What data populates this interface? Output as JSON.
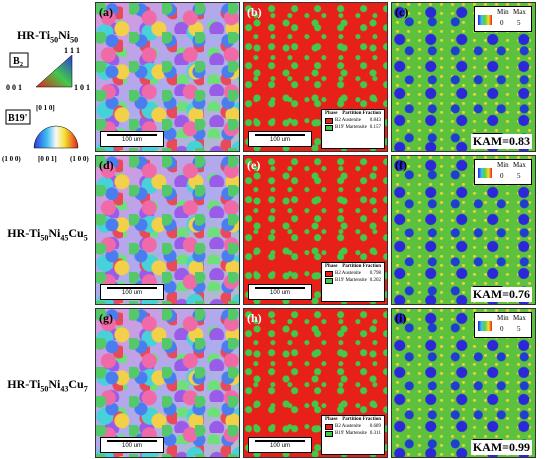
{
  "figure": {
    "rows": [
      {
        "sample_prefix": "HR-Ti",
        "sample_sub1": "50",
        "sample_mid": "Ni",
        "sample_sub2": "50",
        "sample_mid2": "",
        "sample_sub3": "",
        "panels": {
          "ipf": "(a)",
          "phase": "(b)",
          "kam": "(c)"
        },
        "austenite_fraction": "0.843",
        "martensite_fraction": "0.157",
        "kam_value": "=0.83"
      },
      {
        "sample_prefix": "HR-Ti",
        "sample_sub1": "50",
        "sample_mid": "Ni",
        "sample_sub2": "45",
        "sample_mid2": "Cu",
        "sample_sub3": "5",
        "panels": {
          "ipf": "(d)",
          "phase": "(e)",
          "kam": "(f)"
        },
        "austenite_fraction": "0.798",
        "martensite_fraction": "0.202",
        "kam_value": "=0.76"
      },
      {
        "sample_prefix": "HR-Ti",
        "sample_sub1": "50",
        "sample_mid": "Ni",
        "sample_sub2": "43",
        "sample_mid2": "Cu",
        "sample_sub3": "7",
        "panels": {
          "ipf": "(g)",
          "phase": "(h)",
          "kam": "(i)"
        },
        "austenite_fraction": "0.689",
        "martensite_fraction": "0.311",
        "kam_value": "=0.99"
      }
    ],
    "scale_text": "100 um",
    "phase_legend": {
      "col_phase": "Phase",
      "col_fraction": "Partition Fraction",
      "austenite_label": "B2 Austenite",
      "martensite_label": "B19' Martensite",
      "austenite_color": "#e8201a",
      "martensite_color": "#42c94a"
    },
    "kam_legend": {
      "min": "Min",
      "max": "Max",
      "min_val": "0",
      "max_val": "5",
      "kam_label": "KAM"
    },
    "ipf_key": {
      "b2_label": "B",
      "b2_sub": "2",
      "b2_111": "1 1 1",
      "b2_001": "0 0 1",
      "b2_101": "1 0 1",
      "b19_label": "B19'",
      "b19_010": "[0 1 0]",
      "b19_100bar": "(1 0 0)",
      "b19_001": "[0 0 1]",
      "b19_100": "(1 0 0)"
    }
  }
}
